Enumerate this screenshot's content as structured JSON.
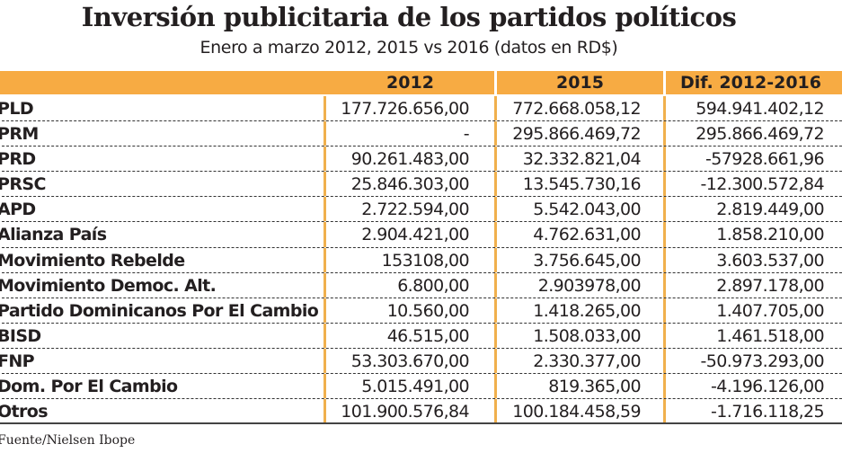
{
  "title": "Inversión publicitaria de los partidos políticos",
  "subtitle": "Enero a marzo 2012, 2015 vs 2016 (datos en RD$)",
  "source": "Fuente/Nielsen Ibope",
  "colors": {
    "header": "#f7ab43",
    "column_divider": "#f0b04d"
  },
  "chart_data": {
    "type": "table",
    "columns": [
      "",
      "2012",
      "2015",
      "Dif. 2012-2016"
    ],
    "rows": [
      [
        "PLD",
        "177.726.656,00",
        "772.668.058,12",
        "594.941.402,12"
      ],
      [
        "PRM",
        "-",
        "295.866.469,72",
        "295.866.469,72"
      ],
      [
        "PRD",
        "90.261.483,00",
        "32.332.821,04",
        "-57928.661,96"
      ],
      [
        "PRSC",
        "25.846.303,00",
        "13.545.730,16",
        "-12.300.572,84"
      ],
      [
        "APD",
        "2.722.594,00",
        "5.542.043,00",
        "2.819.449,00"
      ],
      [
        "Alianza País",
        "2.904.421,00",
        "4.762.631,00",
        "1.858.210,00"
      ],
      [
        "Movimiento Rebelde",
        "153108,00",
        "3.756.645,00",
        "3.603.537,00"
      ],
      [
        "Movimiento Democ. Alt.",
        "6.800,00",
        "2.903978,00",
        "2.897.178,00"
      ],
      [
        "Partido Dominicanos Por El Cambio",
        "10.560,00",
        "1.418.265,00",
        "1.407.705,00"
      ],
      [
        "BISD",
        "46.515,00",
        "1.508.033,00",
        "1.461.518,00"
      ],
      [
        "FNP",
        "53.303.670,00",
        "2.330.377,00",
        "-50.973.293,00"
      ],
      [
        "Dom. Por El Cambio",
        "5.015.491,00",
        "819.365,00",
        "-4.196.126,00"
      ],
      [
        "Otros",
        "101.900.576,84",
        "100.184.458,59",
        "-1.716.118,25"
      ]
    ]
  }
}
